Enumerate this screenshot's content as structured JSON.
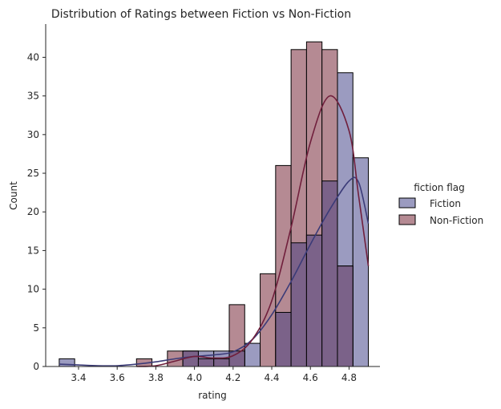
{
  "chart_data": {
    "type": "bar",
    "title": "Distribution of Ratings between Fiction vs Non-Fiction",
    "xlabel": "rating",
    "ylabel": "Count",
    "xlim": [
      3.23,
      4.96
    ],
    "ylim": [
      0,
      44.3
    ],
    "xticks": [
      3.4,
      3.6,
      3.8,
      4.0,
      4.2,
      4.4,
      4.6,
      4.8
    ],
    "xtick_labels": [
      "3.4",
      "3.6",
      "3.8",
      "4.0",
      "4.2",
      "4.4",
      "4.6",
      "4.8"
    ],
    "yticks": [
      0,
      5,
      10,
      15,
      20,
      25,
      30,
      35,
      40
    ],
    "ytick_labels": [
      "0",
      "5",
      "10",
      "15",
      "20",
      "25",
      "30",
      "35",
      "40"
    ],
    "bin_edges": [
      3.3,
      3.38,
      3.46,
      3.54,
      3.62,
      3.7,
      3.78,
      3.86,
      3.94,
      4.02,
      4.1,
      4.18,
      4.26,
      4.34,
      4.42,
      4.5,
      4.58,
      4.66,
      4.74,
      4.82,
      4.9
    ],
    "legend": {
      "title": "fiction flag",
      "placement": "right"
    },
    "grid": false,
    "kde": true,
    "series": [
      {
        "name": "Fiction",
        "color": "#3b3b78",
        "fill": "#9b9bc0",
        "values": [
          1,
          0,
          0,
          0,
          0,
          0,
          0,
          0,
          2,
          2,
          2,
          2,
          3,
          0,
          7,
          16,
          17,
          24,
          38,
          27
        ],
        "kde_curve": [
          [
            3.3,
            0.3
          ],
          [
            3.4,
            0.2
          ],
          [
            3.5,
            0.1
          ],
          [
            3.6,
            0.1
          ],
          [
            3.7,
            0.3
          ],
          [
            3.8,
            0.6
          ],
          [
            3.9,
            1.0
          ],
          [
            4.0,
            1.3
          ],
          [
            4.1,
            1.5
          ],
          [
            4.2,
            1.9
          ],
          [
            4.3,
            3.5
          ],
          [
            4.4,
            6.7
          ],
          [
            4.5,
            11.0
          ],
          [
            4.6,
            15.8
          ],
          [
            4.7,
            20.3
          ],
          [
            4.8,
            24.0
          ],
          [
            4.85,
            23.8
          ],
          [
            4.9,
            18.5
          ]
        ]
      },
      {
        "name": "Non-Fiction",
        "color": "#701f3c",
        "fill": "#b58a93",
        "values": [
          0,
          0,
          0,
          0,
          0,
          1,
          0,
          2,
          2,
          1,
          1,
          8,
          0,
          12,
          26,
          41,
          42,
          41,
          13,
          0
        ],
        "kde_curve": [
          [
            3.7,
            0.0
          ],
          [
            3.8,
            0.1
          ],
          [
            3.9,
            0.7
          ],
          [
            4.0,
            1.3
          ],
          [
            4.1,
            1.1
          ],
          [
            4.2,
            1.4
          ],
          [
            4.3,
            3.5
          ],
          [
            4.4,
            8.5
          ],
          [
            4.5,
            18.0
          ],
          [
            4.6,
            29.0
          ],
          [
            4.7,
            35.0
          ],
          [
            4.8,
            30.5
          ],
          [
            4.85,
            22.0
          ],
          [
            4.9,
            13.0
          ]
        ]
      }
    ]
  }
}
